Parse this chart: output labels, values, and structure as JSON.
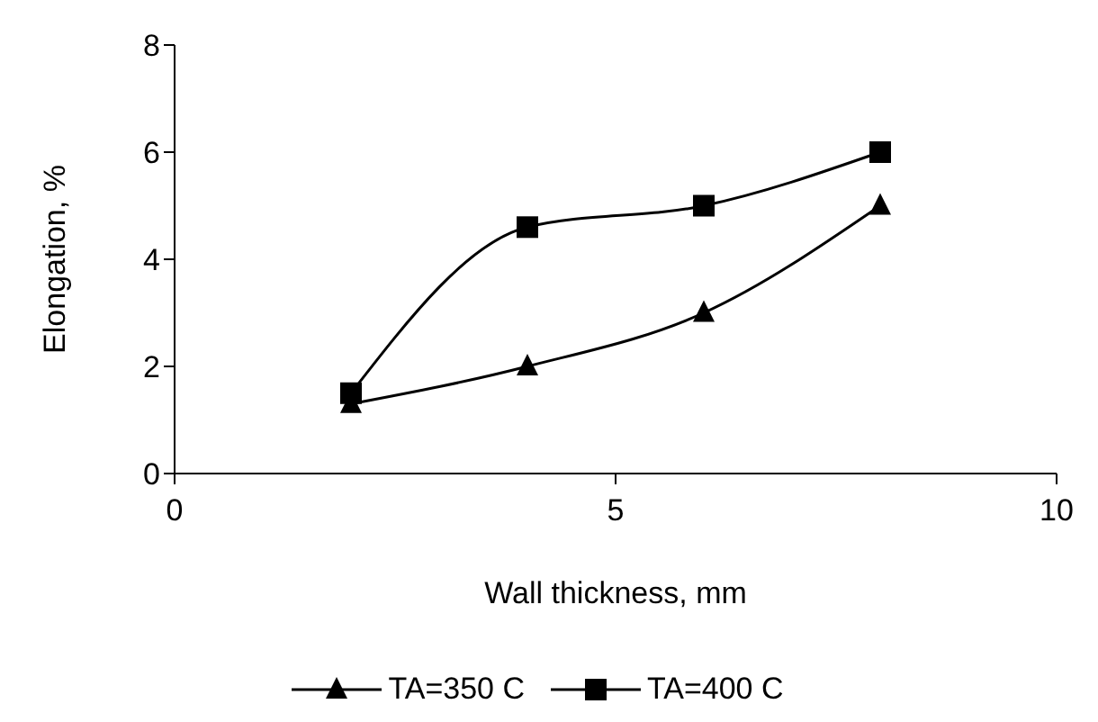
{
  "chart_data": {
    "type": "line",
    "xlabel": "Wall thickness, mm",
    "ylabel": "Elongation, %",
    "x": [
      2,
      4,
      6,
      8
    ],
    "series": [
      {
        "name": "TA=350 C",
        "color": "#000000",
        "marker": "triangle",
        "values": [
          1.3,
          2,
          3,
          5
        ]
      },
      {
        "name": "TA=400 C",
        "color": "#000000",
        "marker": "square",
        "values": [
          1.5,
          4.6,
          5,
          6
        ]
      }
    ],
    "xlim": [
      0,
      10
    ],
    "xticks": [
      0,
      5,
      10
    ],
    "ylim": [
      0,
      8
    ],
    "yticks": [
      0,
      2,
      4,
      6,
      8
    ],
    "grid": false,
    "legend": "bottom",
    "line_style": "solid"
  }
}
